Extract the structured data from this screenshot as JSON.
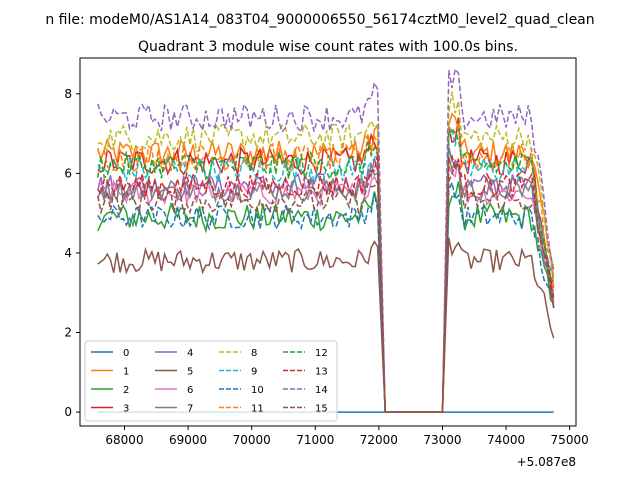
{
  "chart_data": {
    "type": "line",
    "suptitle": "n file: modeM0/AS1A14_083T04_9000006550_56174cztM0_level2_quad_clean",
    "title": "Quadrant 3 module wise count rates with 100.0s bins.",
    "xlabel": "",
    "ylabel": "",
    "x_offset_label": "+5.087e8",
    "x_offset": 508700000,
    "xlim": [
      67300,
      75100
    ],
    "ylim": [
      -0.35,
      8.9
    ],
    "xticks": [
      68000,
      69000,
      70000,
      71000,
      72000,
      73000,
      74000,
      75000
    ],
    "xtick_labels": [
      "68000",
      "69000",
      "70000",
      "71000",
      "72000",
      "73000",
      "74000",
      "75000"
    ],
    "yticks": [
      0,
      2,
      4,
      6,
      8
    ],
    "ytick_labels": [
      "0",
      "2",
      "4",
      "6",
      "8"
    ],
    "grid": false,
    "legend_position": "lower-left",
    "legend_columns": 4,
    "gap": {
      "start": 72100,
      "end": 73000,
      "value": 0
    },
    "segments": [
      {
        "start": 67580,
        "end": 72000,
        "step": 50
      },
      {
        "start": 73100,
        "end": 74750,
        "step": 50
      }
    ],
    "series": [
      {
        "name": "0",
        "color": "#1f77b4",
        "dash": "solid",
        "level": 0,
        "noise": 0
      },
      {
        "name": "1",
        "color": "#ff7f0e",
        "dash": "solid",
        "level": 6.5,
        "noise": 0.35
      },
      {
        "name": "2",
        "color": "#2ca02c",
        "dash": "solid",
        "level": 4.9,
        "noise": 0.35
      },
      {
        "name": "3",
        "color": "#d62728",
        "dash": "solid",
        "level": 6.3,
        "noise": 0.35
      },
      {
        "name": "4",
        "color": "#9467bd",
        "dash": "solid",
        "level": 5.7,
        "noise": 0.3
      },
      {
        "name": "5",
        "color": "#8c564b",
        "dash": "solid",
        "level": 3.8,
        "noise": 0.3
      },
      {
        "name": "6",
        "color": "#e377c2",
        "dash": "solid",
        "level": 5.5,
        "noise": 0.3
      },
      {
        "name": "7",
        "color": "#7f7f7f",
        "dash": "solid",
        "level": 5.6,
        "noise": 0.3
      },
      {
        "name": "8",
        "color": "#bcbd22",
        "dash": "dashed",
        "level": 6.9,
        "noise": 0.35
      },
      {
        "name": "9",
        "color": "#17becf",
        "dash": "dashed",
        "level": 6.1,
        "noise": 0.35
      },
      {
        "name": "10",
        "color": "#1f77b4",
        "dash": "dashed",
        "level": 4.9,
        "noise": 0.3
      },
      {
        "name": "11",
        "color": "#ff7f0e",
        "dash": "dashed",
        "level": 6.4,
        "noise": 0.35
      },
      {
        "name": "12",
        "color": "#2ca02c",
        "dash": "dashed",
        "level": 6.2,
        "noise": 0.35
      },
      {
        "name": "13",
        "color": "#d62728",
        "dash": "dashed",
        "level": 5.7,
        "noise": 0.3
      },
      {
        "name": "14",
        "color": "#9467bd",
        "dash": "dashed",
        "level": 7.4,
        "noise": 0.35
      },
      {
        "name": "15",
        "color": "#8c564b",
        "dash": "dashed",
        "level": 5.3,
        "noise": 0.3
      }
    ]
  }
}
